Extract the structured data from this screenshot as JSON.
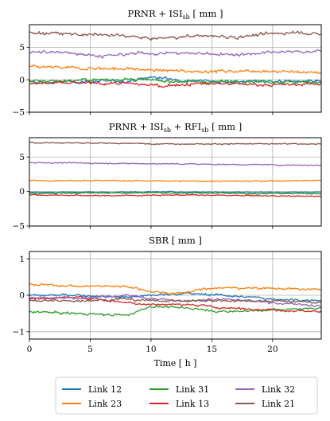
{
  "chart_data": [
    {
      "type": "line",
      "title": "PRNR + ISI",
      "title_sub": "sb",
      "title_suffix": " [ mm ]",
      "xlabel": "",
      "ylabel": "",
      "xlim": [
        0,
        24
      ],
      "ylim": [
        -5,
        8.5
      ],
      "yticks": [
        -5,
        0,
        5
      ],
      "xticks": [
        0,
        5,
        10,
        15,
        20
      ],
      "grid": true,
      "series": [
        {
          "name": "Link 12",
          "color": "#1f77b4",
          "points": [
            [
              0,
              -0.4
            ],
            [
              4,
              -0.3
            ],
            [
              8,
              -0.2
            ],
            [
              10,
              0.4
            ],
            [
              13,
              -0.1
            ],
            [
              16,
              -0.3
            ],
            [
              20,
              -0.2
            ],
            [
              24,
              -0.3
            ]
          ]
        },
        {
          "name": "Link 23",
          "color": "#ff7f0e",
          "points": [
            [
              0,
              2.0
            ],
            [
              4,
              1.8
            ],
            [
              8,
              1.7
            ],
            [
              11,
              1.4
            ],
            [
              15,
              1.3
            ],
            [
              19,
              1.4
            ],
            [
              22,
              1.2
            ],
            [
              24,
              1.1
            ]
          ]
        },
        {
          "name": "Link 31",
          "color": "#2ca02c",
          "points": [
            [
              0,
              -0.2
            ],
            [
              4,
              -0.1
            ],
            [
              7,
              0.1
            ],
            [
              10,
              -0.1
            ],
            [
              14,
              -0.3
            ],
            [
              18,
              -0.2
            ],
            [
              22,
              -0.4
            ],
            [
              24,
              -0.3
            ]
          ]
        },
        {
          "name": "Link 13",
          "color": "#d62728",
          "points": [
            [
              0,
              -0.6
            ],
            [
              4,
              -0.5
            ],
            [
              8,
              -0.6
            ],
            [
              11,
              -0.9
            ],
            [
              14,
              -0.6
            ],
            [
              18,
              -0.7
            ],
            [
              21,
              -0.8
            ],
            [
              24,
              -0.6
            ]
          ]
        },
        {
          "name": "Link 32",
          "color": "#9467bd",
          "points": [
            [
              0,
              4.2
            ],
            [
              3,
              4.3
            ],
            [
              6,
              3.6
            ],
            [
              9,
              4.1
            ],
            [
              13,
              4.1
            ],
            [
              17,
              3.9
            ],
            [
              21,
              4.3
            ],
            [
              24,
              4.4
            ]
          ]
        },
        {
          "name": "Link 21",
          "color": "#8c564b",
          "points": [
            [
              0,
              7.3
            ],
            [
              4,
              7.0
            ],
            [
              8,
              6.8
            ],
            [
              10,
              6.3
            ],
            [
              14,
              6.8
            ],
            [
              17,
              6.6
            ],
            [
              20,
              7.1
            ],
            [
              22,
              7.4
            ],
            [
              24,
              6.9
            ]
          ]
        }
      ]
    },
    {
      "type": "line",
      "title": "PRNR + ISI",
      "title_sub": "sb",
      "title_mid": " + RFI",
      "title_sub2": "sb",
      "title_suffix": " [ mm ]",
      "xlabel": "",
      "ylabel": "",
      "xlim": [
        0,
        24
      ],
      "ylim": [
        -5,
        7.8
      ],
      "yticks": [
        -5,
        0,
        5
      ],
      "xticks": [
        0,
        5,
        10,
        15,
        20
      ],
      "grid": true,
      "series": [
        {
          "name": "Link 12",
          "color": "#1f77b4",
          "points": [
            [
              0,
              -0.1
            ],
            [
              6,
              -0.1
            ],
            [
              12,
              -0.05
            ],
            [
              18,
              -0.1
            ],
            [
              24,
              -0.1
            ]
          ]
        },
        {
          "name": "Link 23",
          "color": "#ff7f0e",
          "points": [
            [
              0,
              1.6
            ],
            [
              6,
              1.6
            ],
            [
              12,
              1.5
            ],
            [
              18,
              1.5
            ],
            [
              24,
              1.6
            ]
          ]
        },
        {
          "name": "Link 31",
          "color": "#2ca02c",
          "points": [
            [
              0,
              -0.3
            ],
            [
              6,
              -0.2
            ],
            [
              12,
              -0.2
            ],
            [
              18,
              -0.3
            ],
            [
              24,
              -0.3
            ]
          ]
        },
        {
          "name": "Link 13",
          "color": "#d62728",
          "points": [
            [
              0,
              -0.5
            ],
            [
              6,
              -0.6
            ],
            [
              12,
              -0.5
            ],
            [
              18,
              -0.6
            ],
            [
              24,
              -0.7
            ]
          ]
        },
        {
          "name": "Link 32",
          "color": "#9467bd",
          "points": [
            [
              0,
              4.2
            ],
            [
              6,
              4.1
            ],
            [
              12,
              4.0
            ],
            [
              18,
              3.9
            ],
            [
              24,
              3.8
            ]
          ]
        },
        {
          "name": "Link 21",
          "color": "#8c564b",
          "points": [
            [
              0,
              7.1
            ],
            [
              6,
              7.0
            ],
            [
              12,
              6.9
            ],
            [
              18,
              6.9
            ],
            [
              24,
              6.9
            ]
          ]
        }
      ]
    },
    {
      "type": "line",
      "title": "SBR [ mm ]",
      "xlabel": "Time [ h ]",
      "ylabel": "",
      "xlim": [
        0,
        24
      ],
      "ylim": [
        -1.2,
        1.2
      ],
      "yticks": [
        -1,
        0,
        1
      ],
      "xticks": [
        0,
        5,
        10,
        15,
        20
      ],
      "xtick_labels": [
        "0",
        "5",
        "10",
        "15",
        "20"
      ],
      "grid": true,
      "series": [
        {
          "name": "Link 12",
          "color": "#1f77b4",
          "points": [
            [
              0,
              0.0
            ],
            [
              4,
              0.0
            ],
            [
              8,
              -0.05
            ],
            [
              10,
              0.0
            ],
            [
              13,
              0.05
            ],
            [
              16,
              0.0
            ],
            [
              20,
              -0.1
            ],
            [
              24,
              -0.15
            ]
          ]
        },
        {
          "name": "Link 23",
          "color": "#ff7f0e",
          "points": [
            [
              0,
              0.3
            ],
            [
              4,
              0.25
            ],
            [
              8,
              0.25
            ],
            [
              10,
              0.1
            ],
            [
              12,
              0.05
            ],
            [
              15,
              0.2
            ],
            [
              19,
              0.2
            ],
            [
              24,
              0.15
            ]
          ]
        },
        {
          "name": "Link 31",
          "color": "#2ca02c",
          "points": [
            [
              0,
              -0.45
            ],
            [
              4,
              -0.5
            ],
            [
              8,
              -0.55
            ],
            [
              10,
              -0.3
            ],
            [
              13,
              -0.35
            ],
            [
              16,
              -0.45
            ],
            [
              20,
              -0.4
            ],
            [
              24,
              -0.35
            ]
          ]
        },
        {
          "name": "Link 13",
          "color": "#d62728",
          "points": [
            [
              0,
              -0.1
            ],
            [
              4,
              -0.05
            ],
            [
              8,
              -0.2
            ],
            [
              10,
              -0.25
            ],
            [
              13,
              -0.25
            ],
            [
              16,
              -0.35
            ],
            [
              20,
              -0.4
            ],
            [
              24,
              -0.45
            ]
          ]
        },
        {
          "name": "Link 32",
          "color": "#9467bd",
          "points": [
            [
              0,
              -0.05
            ],
            [
              4,
              -0.1
            ],
            [
              8,
              0.0
            ],
            [
              10,
              -0.1
            ],
            [
              13,
              -0.15
            ],
            [
              16,
              -0.1
            ],
            [
              20,
              -0.2
            ],
            [
              24,
              -0.3
            ]
          ]
        },
        {
          "name": "Link 21",
          "color": "#8c564b",
          "points": [
            [
              0,
              -0.15
            ],
            [
              4,
              -0.15
            ],
            [
              8,
              -0.1
            ],
            [
              10,
              -0.15
            ],
            [
              13,
              -0.15
            ],
            [
              16,
              -0.15
            ],
            [
              20,
              -0.15
            ],
            [
              24,
              -0.2
            ]
          ]
        }
      ]
    }
  ],
  "legend": {
    "placement": "bottom-center",
    "entries": [
      {
        "label": "Link 12",
        "color": "#1f77b4"
      },
      {
        "label": "Link 23",
        "color": "#ff7f0e"
      },
      {
        "label": "Link 31",
        "color": "#2ca02c"
      },
      {
        "label": "Link 13",
        "color": "#d62728"
      },
      {
        "label": "Link 32",
        "color": "#9467bd"
      },
      {
        "label": "Link 21",
        "color": "#8c564b"
      }
    ]
  }
}
